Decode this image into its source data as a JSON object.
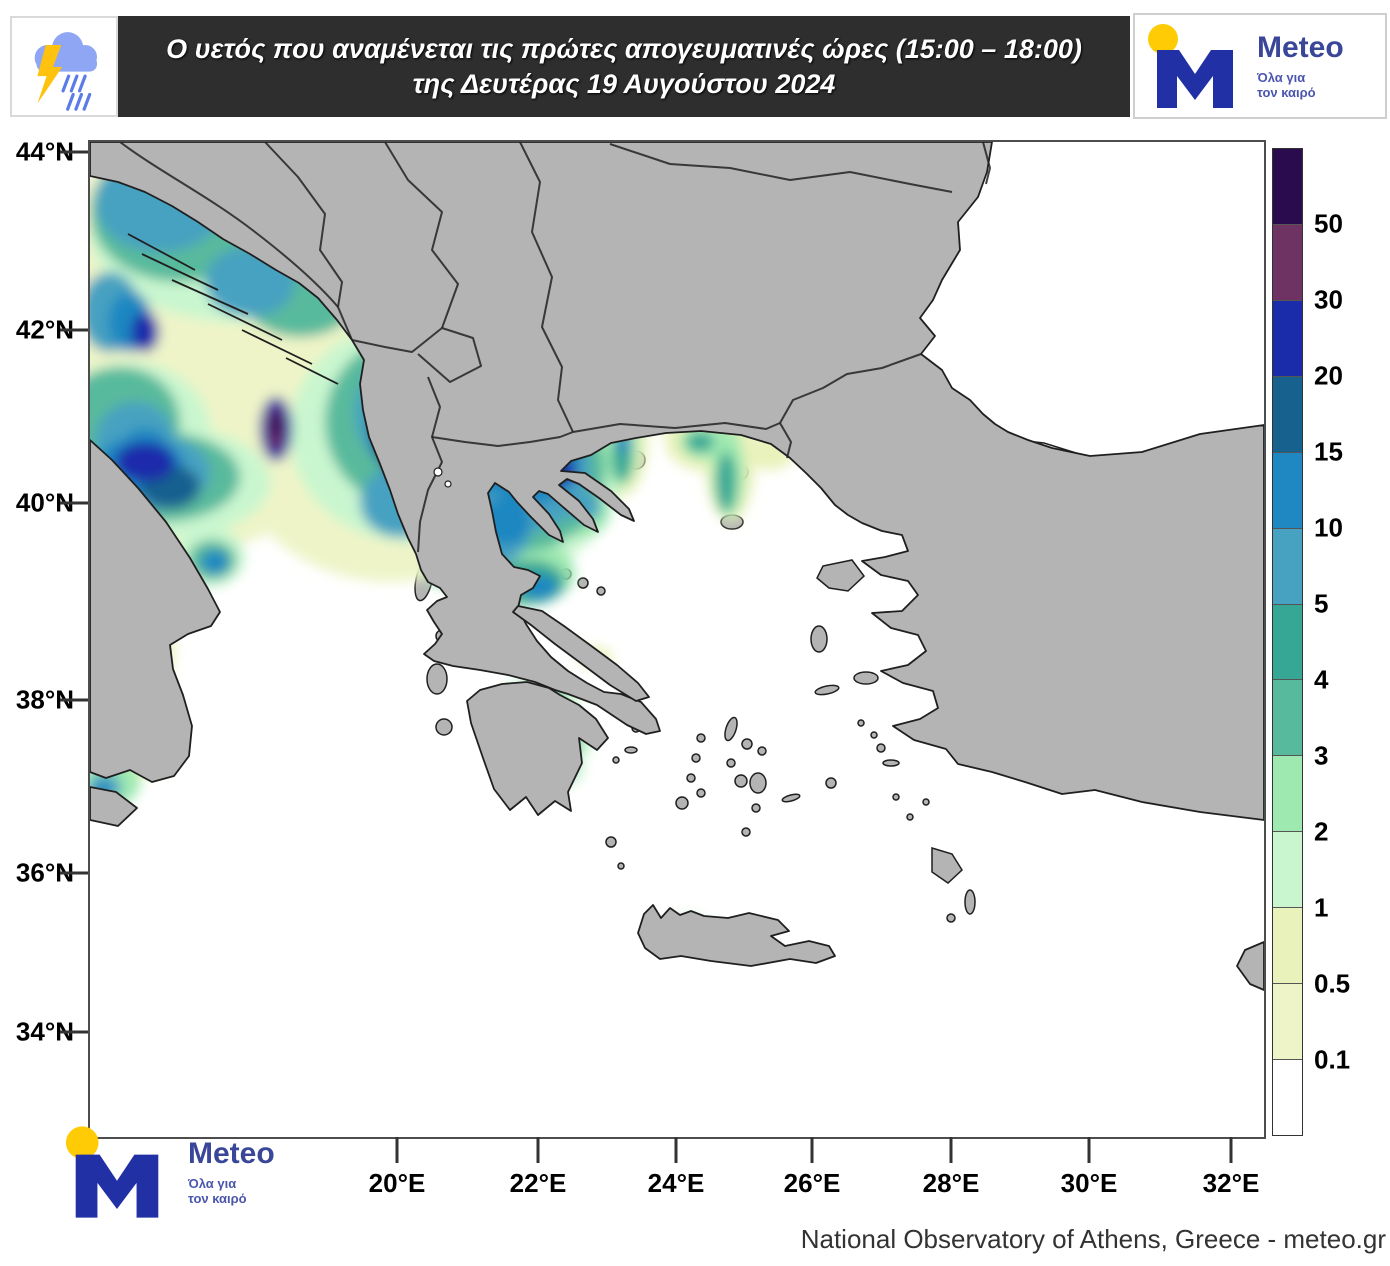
{
  "header": {
    "title_line1": "Ο υετός που αναμένεται τις πρώτες απογευματινές ώρες (15:00 – 18:00)",
    "title_line2": "της Δευτέρας 19 Αυγούστου 2024"
  },
  "logo": {
    "brand": "Meteo",
    "tagline_line1": "Όλα για",
    "tagline_line2": "τον καιρό"
  },
  "axes": {
    "lat_labels": [
      "44°N",
      "42°N",
      "40°N",
      "38°N",
      "36°N",
      "34°N"
    ],
    "lon_labels": [
      "20°E",
      "22°E",
      "24°E",
      "26°E",
      "28°E",
      "30°E",
      "32°E"
    ]
  },
  "legend": {
    "labels": [
      "50",
      "30",
      "20",
      "15",
      "10",
      "5",
      "4",
      "3",
      "2",
      "1",
      "0.5",
      "0.1"
    ],
    "colors_top_to_bottom": [
      "#2a0b4e",
      "#6e3263",
      "#1b2cab",
      "#17618f",
      "#1f87c1",
      "#47a1c1",
      "#35a794",
      "#58ba9c",
      "#9ee9b0",
      "#c9f6cf",
      "#e9f2bb",
      "#eef4c8",
      "#ffffff"
    ]
  },
  "footer": {
    "attribution": "National Observatory of Athens, Greece - meteo.gr"
  },
  "colors": {
    "banner_bg": "#2e2e2e",
    "banner_text": "#ffffff",
    "land": "#b4b4b4",
    "sea": "#ffffff",
    "coastline": "#1f1f1f",
    "map_border": "#4d4d4d",
    "axis_text": "#000000",
    "logo_blue": "#2230a6",
    "logo_text_blue": "#3a4798",
    "logo_yellow": "#ffcb05",
    "storm_cloud": "#8ea6f4",
    "storm_bolt": "#ffc20e",
    "storm_rain": "#5b7ce8",
    "attribution_text": "#333333"
  }
}
